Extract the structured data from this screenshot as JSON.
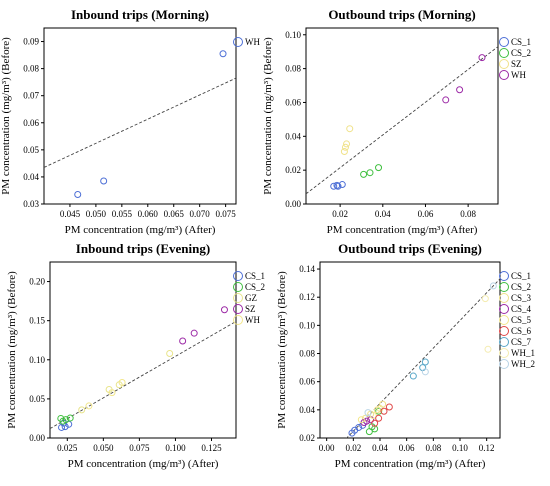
{
  "colors": {
    "WH": "#4d6fd6",
    "SZ": "#f0e28a",
    "CS_1": "#4d6fd6",
    "CS_2": "#3fbf3f",
    "SZ_purple": "#9c2aa6",
    "GZ": "#e8e48a",
    "CS_3": "#efe08a",
    "CS_4": "#9c2aa6",
    "CS_5": "#f2e68a",
    "CS_6": "#e04848",
    "CS_7": "#5aa7c8",
    "WH_1": "#f4ecb0",
    "WH_2": "#b9d4e6"
  },
  "chart_data": [
    {
      "type": "scatter",
      "title": "Inbound trips (Morning)",
      "xlabel": "PM concentration (mg/m³) (After)",
      "ylabel": "PM concentration (mg/m³) (Before)",
      "xlim": [
        0.04,
        0.077
      ],
      "ylim": [
        0.03,
        0.095
      ],
      "xticks": [
        "0.045",
        "0.050",
        "0.055",
        "0.060",
        "0.065",
        "0.070",
        "0.075"
      ],
      "yticks": [
        "0.03",
        "0.04",
        "0.05",
        "0.06",
        "0.07",
        "0.08",
        "0.09"
      ],
      "xtick_values": [
        0.045,
        0.05,
        0.055,
        0.06,
        0.065,
        0.07,
        0.075
      ],
      "ytick_values": [
        0.03,
        0.04,
        0.05,
        0.06,
        0.07,
        0.08,
        0.09
      ],
      "fit_line": [
        [
          0.04,
          0.0435
        ],
        [
          0.077,
          0.0765
        ]
      ],
      "legend": [
        {
          "name": "WH",
          "color": "#4d6fd6"
        }
      ],
      "series": [
        {
          "name": "WH",
          "color": "#4d6fd6",
          "points": [
            [
              0.0465,
              0.0335
            ],
            [
              0.0515,
              0.0385
            ],
            [
              0.0745,
              0.0855
            ]
          ]
        }
      ]
    },
    {
      "type": "scatter",
      "title": "Outbound trips (Morning)",
      "xlabel": "PM concentration (mg/m³) (After)",
      "ylabel": "PM concentration (mg/m³) (Before)",
      "xlim": [
        0.004,
        0.094
      ],
      "ylim": [
        0.0,
        0.104
      ],
      "xticks": [
        "0.02",
        "0.04",
        "0.06",
        "0.08"
      ],
      "yticks": [
        "0.00",
        "0.02",
        "0.04",
        "0.06",
        "0.08",
        "0.10"
      ],
      "xtick_values": [
        0.02,
        0.04,
        0.06,
        0.08
      ],
      "ytick_values": [
        0.0,
        0.02,
        0.04,
        0.06,
        0.08,
        0.1
      ],
      "fit_line": [
        [
          0.004,
          0.006
        ],
        [
          0.094,
          0.093
        ]
      ],
      "legend": [
        {
          "name": "CS_1",
          "color": "#4d6fd6"
        },
        {
          "name": "CS_2",
          "color": "#3fbf3f"
        },
        {
          "name": "SZ",
          "color": "#f0e28a"
        },
        {
          "name": "WH",
          "color": "#9c2aa6"
        }
      ],
      "series": [
        {
          "name": "CS_1",
          "color": "#4d6fd6",
          "points": [
            [
              0.017,
              0.0105
            ],
            [
              0.0185,
              0.011
            ],
            [
              0.021,
              0.0115
            ],
            [
              0.019,
              0.0105
            ]
          ]
        },
        {
          "name": "CS_2",
          "color": "#3fbf3f",
          "points": [
            [
              0.031,
              0.0175
            ],
            [
              0.034,
              0.0185
            ],
            [
              0.038,
              0.0215
            ]
          ]
        },
        {
          "name": "SZ",
          "color": "#f0e28a",
          "points": [
            [
              0.0225,
              0.0335
            ],
            [
              0.023,
              0.0355
            ],
            [
              0.0245,
              0.0445
            ],
            [
              0.022,
              0.031
            ]
          ]
        },
        {
          "name": "WH",
          "color": "#9c2aa6",
          "points": [
            [
              0.0695,
              0.0615
            ],
            [
              0.076,
              0.0675
            ],
            [
              0.0865,
              0.0865
            ]
          ]
        }
      ]
    },
    {
      "type": "scatter",
      "title": "Inbound trips (Evening)",
      "xlabel": "PM concentration (mg/m³) (After)",
      "ylabel": "PM concentration (mg/m³) (Before)",
      "xlim": [
        0.013,
        0.142
      ],
      "ylim": [
        0.0,
        0.225
      ],
      "xticks": [
        "0.025",
        "0.050",
        "0.075",
        "0.100",
        "0.125"
      ],
      "yticks": [
        "0.00",
        "0.05",
        "0.10",
        "0.15",
        "0.20"
      ],
      "xtick_values": [
        0.025,
        0.05,
        0.075,
        0.1,
        0.125
      ],
      "ytick_values": [
        0.0,
        0.05,
        0.1,
        0.15,
        0.2
      ],
      "fit_line": [
        [
          0.013,
          0.012
        ],
        [
          0.142,
          0.149
        ]
      ],
      "legend": [
        {
          "name": "CS_1",
          "color": "#4d6fd6"
        },
        {
          "name": "CS_2",
          "color": "#3fbf3f"
        },
        {
          "name": "GZ",
          "color": "#e8e48a"
        },
        {
          "name": "SZ",
          "color": "#9c2aa6"
        },
        {
          "name": "WH",
          "color": "#f2e68a"
        }
      ],
      "series": [
        {
          "name": "CS_1",
          "color": "#4d6fd6",
          "points": [
            [
              0.021,
              0.0135
            ],
            [
              0.0235,
              0.0145
            ],
            [
              0.026,
              0.0175
            ],
            [
              0.0225,
              0.019
            ]
          ]
        },
        {
          "name": "CS_2",
          "color": "#3fbf3f",
          "points": [
            [
              0.022,
              0.0215
            ],
            [
              0.024,
              0.0235
            ],
            [
              0.027,
              0.0255
            ],
            [
              0.0205,
              0.025
            ]
          ]
        },
        {
          "name": "GZ",
          "color": "#e8e48a",
          "points": [
            [
              0.035,
              0.036
            ],
            [
              0.054,
              0.062
            ],
            [
              0.061,
              0.068
            ],
            [
              0.096,
              0.108
            ]
          ]
        },
        {
          "name": "SZ",
          "color": "#9c2aa6",
          "points": [
            [
              0.105,
              0.124
            ],
            [
              0.113,
              0.134
            ],
            [
              0.134,
              0.164
            ]
          ]
        },
        {
          "name": "WH",
          "color": "#f2e68a",
          "points": [
            [
              0.063,
              0.071
            ],
            [
              0.056,
              0.058
            ],
            [
              0.04,
              0.041
            ]
          ]
        }
      ]
    },
    {
      "type": "scatter",
      "title": "Outbound trips (Evening)",
      "xlabel": "PM concentration (mg/m³) (After)",
      "ylabel": "PM concentration (mg/m³) (Before)",
      "xlim": [
        -0.005,
        0.13
      ],
      "ylim": [
        0.02,
        0.145
      ],
      "xticks": [
        "0.00",
        "0.02",
        "0.04",
        "0.06",
        "0.08",
        "0.10",
        "0.12"
      ],
      "yticks": [
        "0.02",
        "0.04",
        "0.06",
        "0.08",
        "0.10",
        "0.12",
        "0.14"
      ],
      "xtick_values": [
        0.0,
        0.02,
        0.04,
        0.06,
        0.08,
        0.1,
        0.12
      ],
      "ytick_values": [
        0.02,
        0.04,
        0.06,
        0.08,
        0.1,
        0.12,
        0.14
      ],
      "fit_line": [
        [
          0.012,
          0.017
        ],
        [
          0.13,
          0.133
        ]
      ],
      "legend": [
        {
          "name": "CS_1",
          "color": "#4d6fd6"
        },
        {
          "name": "CS_2",
          "color": "#3fbf3f"
        },
        {
          "name": "CS_3",
          "color": "#efe08a"
        },
        {
          "name": "CS_4",
          "color": "#9c2aa6"
        },
        {
          "name": "CS_5",
          "color": "#f2e68a"
        },
        {
          "name": "CS_6",
          "color": "#e04848"
        },
        {
          "name": "CS_7",
          "color": "#5aa7c8"
        },
        {
          "name": "WH_1",
          "color": "#f4ecb0"
        },
        {
          "name": "WH_2",
          "color": "#b9d4e6"
        }
      ],
      "series": [
        {
          "name": "CS_1",
          "color": "#4d6fd6",
          "points": [
            [
              0.019,
              0.0235
            ],
            [
              0.021,
              0.0255
            ],
            [
              0.024,
              0.0275
            ],
            [
              0.027,
              0.029
            ]
          ]
        },
        {
          "name": "CS_2",
          "color": "#3fbf3f",
          "points": [
            [
              0.032,
              0.0245
            ],
            [
              0.036,
              0.0265
            ],
            [
              0.039,
              0.039
            ],
            [
              0.034,
              0.028
            ]
          ]
        },
        {
          "name": "CS_3",
          "color": "#efe08a",
          "points": [
            [
              0.029,
              0.034
            ],
            [
              0.033,
              0.037
            ],
            [
              0.038,
              0.04
            ],
            [
              0.042,
              0.044
            ]
          ]
        },
        {
          "name": "CS_4",
          "color": "#9c2aa6",
          "points": [
            [
              0.028,
              0.031
            ],
            [
              0.03,
              0.032
            ],
            [
              0.033,
              0.033
            ]
          ]
        },
        {
          "name": "CS_5",
          "color": "#f2e68a",
          "points": [
            [
              0.035,
              0.036
            ],
            [
              0.04,
              0.041
            ],
            [
              0.026,
              0.033
            ]
          ]
        },
        {
          "name": "CS_6",
          "color": "#e04848",
          "points": [
            [
              0.036,
              0.0305
            ],
            [
              0.039,
              0.034
            ],
            [
              0.047,
              0.042
            ],
            [
              0.043,
              0.039
            ]
          ]
        },
        {
          "name": "CS_7",
          "color": "#5aa7c8",
          "points": [
            [
              0.065,
              0.064
            ],
            [
              0.072,
              0.07
            ],
            [
              0.074,
              0.074
            ]
          ]
        },
        {
          "name": "WH_1",
          "color": "#f4ecb0",
          "points": [
            [
              0.119,
              0.119
            ],
            [
              0.121,
              0.083
            ]
          ]
        },
        {
          "name": "WH_2",
          "color": "#b9d4e6",
          "points": [
            [
              0.074,
              0.067
            ],
            [
              0.031,
              0.038
            ],
            [
              0.125,
              0.128
            ]
          ]
        }
      ]
    }
  ]
}
